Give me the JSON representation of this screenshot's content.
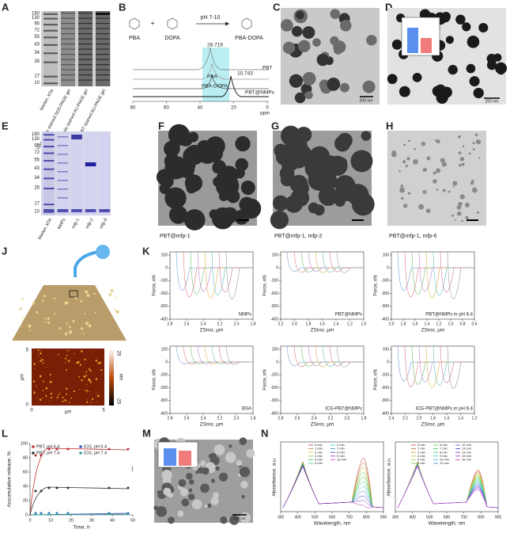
{
  "labels": [
    "A",
    "B",
    "C",
    "D",
    "E",
    "F",
    "G",
    "H",
    "J",
    "K",
    "L",
    "M",
    "N"
  ],
  "gel_a": {
    "markers": [
      "180",
      "130",
      "95",
      "72",
      "55",
      "43",
      "34",
      "26",
      "17",
      "10"
    ],
    "lanes": [
      "Marker, kDa",
      "Coomassie stained SDS-PAGE gel",
      "Coomassie stained AU-PAGE gel",
      "NBT stained AU-PAGE gel"
    ]
  },
  "scheme_b": {
    "reagents": [
      "PBA",
      "DOPA",
      "PBA-DOPA"
    ],
    "plus": "+",
    "condition": "pH 7-10",
    "peaks": [
      "28.719",
      "10.743"
    ],
    "traces": [
      "PBT",
      "PBA",
      "PBA-DOPA",
      "PBT@NMPs"
    ],
    "xticks": [
      "80",
      "60",
      "40",
      "20",
      "0"
    ],
    "xlabel": "ppm"
  },
  "tem_c": {
    "scale": "200 nm"
  },
  "tem_d": {
    "scale": "200 nm"
  },
  "gel_e": {
    "markers": [
      "180",
      "130",
      "95",
      "72",
      "55",
      "43",
      "34",
      "26",
      "17",
      "10"
    ],
    "lanes": [
      "Marker, kDa",
      "NMPs",
      "mfp-1",
      "mfp-2",
      "mfp-6"
    ]
  },
  "captions": [
    "PBT@mfp-1",
    "PBT@mfp-1, mfp-2",
    "PBT@mfp-1, mfp-6"
  ],
  "afm_j": {
    "yticks": [
      "5",
      "0"
    ],
    "xticks": [
      "0",
      "5"
    ],
    "xlabel": "µm",
    "ylabel": "µm",
    "colorbar": [
      "25",
      "-25"
    ],
    "unit": "nm"
  },
  "force_k": {
    "ylabel": "Force, nN",
    "xlabel": "ZSnsr, µm",
    "yticks": [
      "100",
      "0",
      "-100",
      "-200",
      "-300",
      "-400"
    ],
    "plots": [
      {
        "name": "NMPs",
        "xticks": [
          "2.8",
          "2.6",
          "2.4",
          "2.2",
          "2.0",
          "1.8"
        ]
      },
      {
        "name": "PBT@NMPs",
        "xticks": [
          "2.2",
          "2.0",
          "1.8",
          "1.6",
          "1.4",
          "1.2",
          "1.0"
        ]
      },
      {
        "name": "PBT@NMPs in pH 6.4",
        "xticks": [
          "2.0",
          "1.8",
          "1.6",
          "1.4",
          "1.2",
          "1.0",
          "0.8",
          "0.6"
        ]
      },
      {
        "name": "BSA",
        "xticks": [
          "2.8",
          "2.6",
          "2.4",
          "2.2",
          "2.0",
          "1.8"
        ]
      },
      {
        "name": "ICG-PBT@NMPs",
        "xticks": [
          "2.8",
          "2.6",
          "2.4",
          "2.2",
          "2.0",
          "1.8"
        ]
      },
      {
        "name": "ICG-PBT@NMPs in pH 6.4",
        "xticks": [
          "2.4",
          "2.2",
          "2.0",
          "1.8",
          "1.6",
          "1.4",
          "1.2"
        ]
      }
    ]
  },
  "release_l": {
    "ylabel": "Accumulative release, %",
    "xlabel": "Time, h",
    "yticks": [
      "100",
      "80",
      "60",
      "40",
      "20",
      "0"
    ],
    "xticks": [
      "0",
      "10",
      "20",
      "30",
      "40",
      "50"
    ],
    "legend": [
      "PBT, pH 6.4",
      "PBT, pH 7.4",
      "ICG, pH 6.4",
      "ICG, pH 7.4"
    ],
    "sig": "***"
  },
  "tem_m": {
    "scale": "100 nm"
  },
  "absorb_n": {
    "ylabel": "Absorbance, a.u.",
    "xlabel": "Wavelength, nm",
    "xticks": [
      "300",
      "400",
      "500",
      "600",
      "700",
      "800",
      "900"
    ],
    "legend1": [
      "0 min",
      "1 min",
      "2 min",
      "3 min",
      "4 min",
      "5 min",
      "6 min",
      "7 min",
      "8 min",
      "9 min",
      "10 min"
    ],
    "legend2": [
      "0 min",
      "1 min",
      "2 min",
      "3 min",
      "4 min",
      "5 min",
      "6 min",
      "7 min",
      "8 min",
      "9 min",
      "10 min",
      "11 min",
      "12 min",
      "13 min",
      "14 min",
      "15 min",
      "16 min"
    ]
  }
}
